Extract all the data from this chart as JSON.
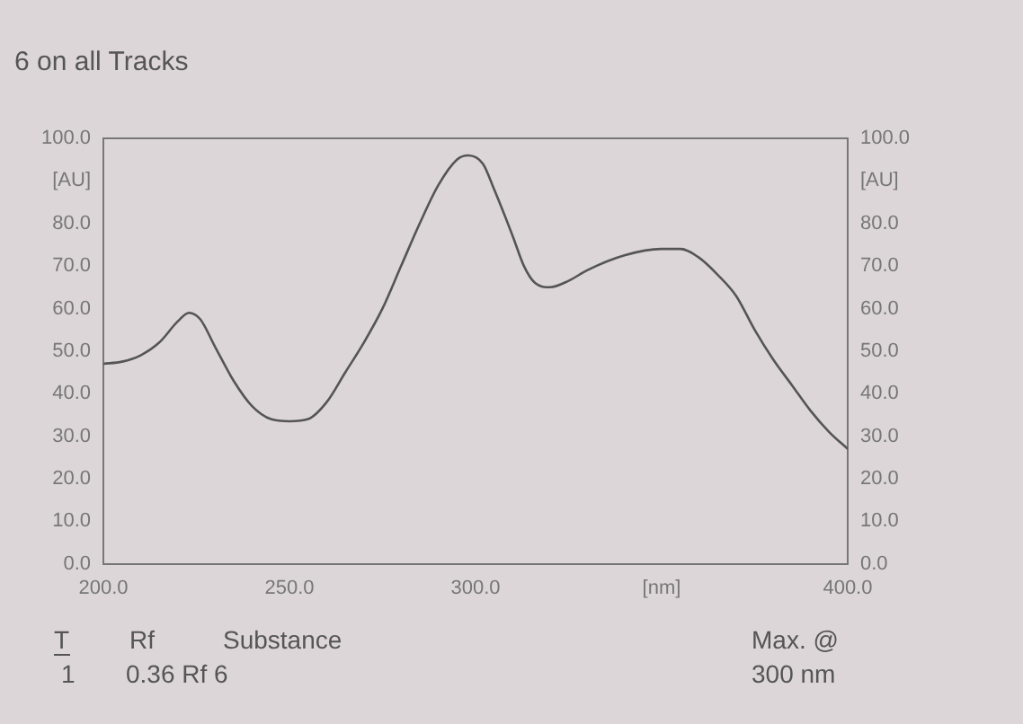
{
  "chart_data": {
    "type": "line",
    "title": "6 on all Tracks",
    "x": [
      200,
      205,
      210,
      215,
      220,
      223,
      226,
      230,
      235,
      240,
      245,
      250,
      255,
      260,
      265,
      270,
      275,
      280,
      285,
      290,
      295,
      298,
      302,
      305,
      310,
      313,
      316,
      320,
      325,
      330,
      340,
      350,
      355,
      360,
      365,
      370,
      375,
      380,
      385,
      390,
      395,
      400
    ],
    "series": [
      {
        "color": "#555555",
        "values": [
          47,
          47.5,
          49,
          52,
          57,
          59,
          57.5,
          51,
          43,
          37,
          34,
          33.5,
          34,
          38,
          45,
          52,
          60,
          70,
          80,
          89,
          95,
          96,
          94,
          88,
          77,
          70,
          66,
          65,
          66.5,
          69,
          72.5,
          74,
          74,
          72,
          68,
          63,
          55,
          48,
          42,
          36,
          31,
          27
        ]
      }
    ],
    "xlim": [
      200,
      400
    ],
    "xticks": [
      {
        "value": 200,
        "label": "200.0"
      },
      {
        "value": 250,
        "label": "250.0"
      },
      {
        "value": 300,
        "label": "300.0"
      },
      {
        "value": 350,
        "label": "[nm]"
      },
      {
        "value": 400,
        "label": "400.0"
      }
    ],
    "ylim": [
      0,
      100
    ],
    "yticks": [
      {
        "value": 0,
        "label": "0.0"
      },
      {
        "value": 10,
        "label": "10.0"
      },
      {
        "value": 20,
        "label": "20.0"
      },
      {
        "value": 30,
        "label": "30.0"
      },
      {
        "value": 40,
        "label": "40.0"
      },
      {
        "value": 50,
        "label": "50.0"
      },
      {
        "value": 60,
        "label": "60.0"
      },
      {
        "value": 70,
        "label": "70.0"
      },
      {
        "value": 80,
        "label": "80.0"
      },
      {
        "value": 90,
        "label": "[AU]"
      },
      {
        "value": 100,
        "label": "100.0"
      }
    ],
    "y2lim": [
      0,
      100
    ],
    "y2ticks": [
      {
        "value": 0,
        "label": "0.0"
      },
      {
        "value": 10,
        "label": "10.0"
      },
      {
        "value": 20,
        "label": "20.0"
      },
      {
        "value": 30,
        "label": "30.0"
      },
      {
        "value": 40,
        "label": "40.0"
      },
      {
        "value": 50,
        "label": "50.0"
      },
      {
        "value": 60,
        "label": "60.0"
      },
      {
        "value": 70,
        "label": "70.0"
      },
      {
        "value": 80,
        "label": "80.0"
      },
      {
        "value": 90,
        "label": "[AU]"
      },
      {
        "value": 100,
        "label": "100.0"
      }
    ],
    "grid": false,
    "legend": false,
    "marker": "none",
    "line_style": "solid",
    "annotations": [
      "T",
      "Rf",
      "Substance",
      "Max. @",
      "1",
      "0.36 Rf 6",
      "300 nm"
    ]
  }
}
